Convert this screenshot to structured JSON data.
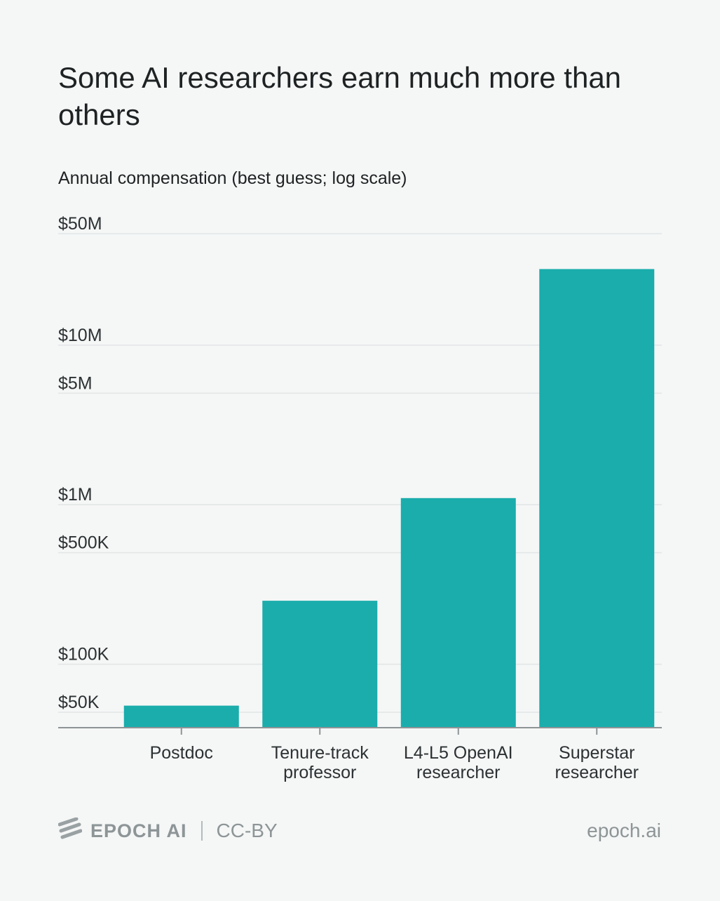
{
  "chart_data": {
    "type": "bar",
    "title": "Some AI researchers earn much more than others",
    "subtitle": "Annual compensation (best guess; log scale)",
    "scale": "log",
    "ylim": [
      40000,
      50000000
    ],
    "yticks": [
      {
        "value": 50000,
        "label": "$50K"
      },
      {
        "value": 100000,
        "label": "$100K"
      },
      {
        "value": 500000,
        "label": "$500K"
      },
      {
        "value": 1000000,
        "label": "$1M"
      },
      {
        "value": 5000000,
        "label": "$5M"
      },
      {
        "value": 10000000,
        "label": "$10M"
      },
      {
        "value": 50000000,
        "label": "$50M"
      }
    ],
    "grid": true,
    "categories": [
      [
        "Postdoc"
      ],
      [
        "Tenure-track",
        "professor"
      ],
      [
        "L4-L5 OpenAI",
        "researcher"
      ],
      [
        "Superstar",
        "researcher"
      ]
    ],
    "values": [
      55000,
      250000,
      1100000,
      30000000
    ],
    "bar_color": "#1aadac"
  },
  "footer": {
    "brand": "EPOCH AI",
    "license": "CC-BY",
    "site": "epoch.ai"
  }
}
